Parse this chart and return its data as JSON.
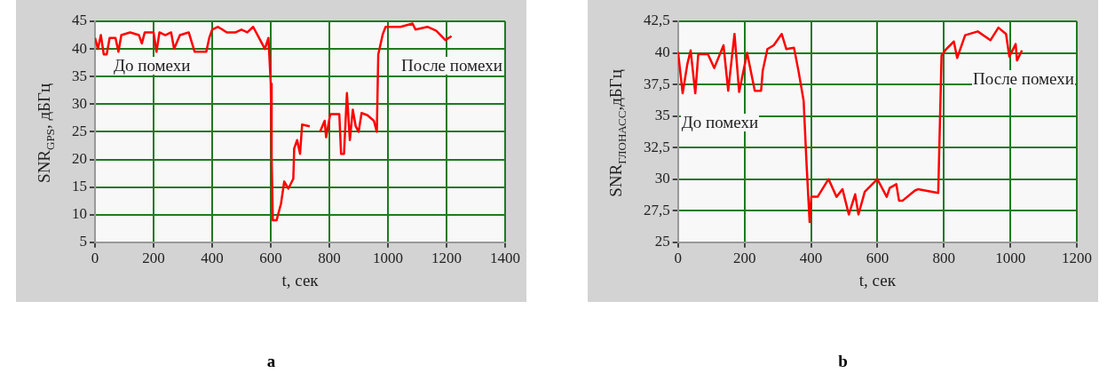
{
  "chart_data": [
    {
      "type": "line",
      "xlabel": "t, сек",
      "ylabel": "SNR$_{GPS}$, дБГц",
      "xlim": [
        0,
        1400
      ],
      "xticks": [
        0,
        200,
        400,
        600,
        800,
        1000,
        1200,
        1400
      ],
      "ylim": [
        5,
        45
      ],
      "yticks": [
        5,
        10,
        15,
        20,
        25,
        30,
        35,
        40,
        45
      ],
      "grid": true,
      "marker": "none",
      "series": [
        {
          "color": "#ff0000",
          "x": [
            0,
            10,
            20,
            30,
            40,
            50,
            70,
            80,
            90,
            120,
            150,
            160,
            170,
            200,
            210,
            220,
            240,
            260,
            270,
            290,
            320,
            340,
            380,
            390,
            400,
            420,
            450,
            480,
            500,
            520,
            540,
            560,
            580,
            592,
            600,
            603,
            607,
            620,
            635,
            646,
            660,
            677,
            680,
            690,
            700,
            707,
            733,
            750,
            768,
            784,
            789,
            803,
            834,
            840,
            850,
            860,
            870,
            880,
            890,
            900,
            910,
            930,
            952,
            962,
            967,
            982,
            992,
            1043,
            1084,
            1094,
            1135,
            1165,
            1196,
            1217
          ],
          "values": [
            42,
            40,
            42.5,
            39,
            39,
            42,
            42,
            39.5,
            42.5,
            43,
            42.5,
            41,
            43,
            43,
            39.5,
            43,
            42.5,
            43,
            40,
            42.5,
            43,
            39.5,
            39.5,
            42,
            43.5,
            44,
            43,
            43,
            43.5,
            43,
            44,
            42,
            40,
            42,
            33.7,
            20.4,
            9,
            9,
            12,
            16,
            14.7,
            16.5,
            22,
            23.5,
            21,
            26.3,
            26,
            null,
            25,
            27,
            24,
            28.2,
            28.2,
            21,
            21,
            32,
            23.5,
            29,
            26,
            25,
            28.4,
            28,
            27,
            25,
            39,
            42.6,
            44,
            44,
            44.6,
            43.5,
            44,
            43.3,
            41.6,
            42.3
          ]
        }
      ],
      "annotations": [
        "До помехи",
        "После помехи"
      ],
      "title": "a"
    },
    {
      "type": "line",
      "xlabel": "t, сек",
      "ylabel": "SNR$_{ГЛОНАСС}$,дБГц",
      "xlim": [
        0,
        1200
      ],
      "xticks": [
        0,
        200,
        400,
        600,
        800,
        1000,
        1200
      ],
      "ylim": [
        25,
        42.5
      ],
      "yticks": [
        25,
        {
          "value": 27.5,
          "label": "27,5"
        },
        30,
        {
          "value": 32.5,
          "label": "32,5"
        },
        35,
        {
          "value": 37.5,
          "label": "37,5"
        },
        40,
        {
          "value": 42.5,
          "label": "42,5"
        }
      ],
      "grid": true,
      "marker": "none",
      "series": [
        {
          "color": "#ff0000",
          "x": [
            0,
            14,
            28,
            38,
            52,
            61,
            90,
            109,
            137,
            151,
            170,
            184,
            208,
            231,
            250,
            255,
            269,
            288,
            312,
            326,
            349,
            363,
            378,
            387,
            396,
            401,
            420,
            453,
            477,
            495,
            514,
            533,
            543,
            562,
            600,
            628,
            637,
            657,
            665,
            676,
            713,
            722,
            783,
            793,
            807,
            830,
            840,
            864,
            902,
            940,
            964,
            987,
            997,
            1016,
            1020,
            1035
          ],
          "values": [
            40.1,
            36.8,
            39.1,
            40.2,
            36.8,
            39.9,
            39.9,
            38.8,
            40.6,
            37,
            41.5,
            36.9,
            40,
            37,
            37,
            38.6,
            40.3,
            40.6,
            41.5,
            40.3,
            40.4,
            38.5,
            36.2,
            31.1,
            26.6,
            28.6,
            28.6,
            30,
            28.6,
            29.2,
            27.2,
            28.8,
            27.2,
            29,
            30,
            28.6,
            29.3,
            29.6,
            28.3,
            28.3,
            29.1,
            29.2,
            28.9,
            39.8,
            40.3,
            40.9,
            39.6,
            41.4,
            41.7,
            41,
            42,
            41.5,
            39.7,
            40.7,
            39.4,
            40.2
          ]
        }
      ],
      "annotations": [
        "До помехи",
        "После помехи"
      ],
      "title": "b"
    }
  ]
}
